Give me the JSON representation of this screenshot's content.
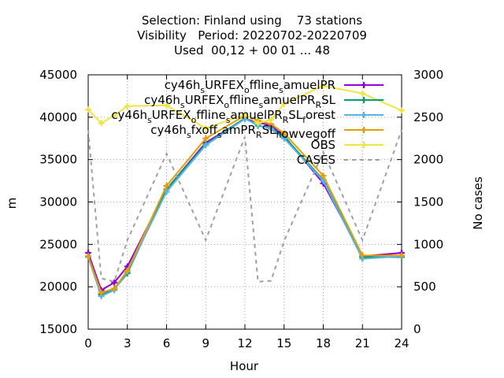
{
  "title_lines": [
    "Selection: Finland using    73 stations",
    "Visibility   Period: 20220702-20220709",
    "Used  00,12 + 00 01 ... 48"
  ],
  "chart_data": {
    "type": "line",
    "xlabel": "Hour",
    "ylabel": "m",
    "y2label": "No cases",
    "xlim": [
      0,
      24
    ],
    "ylim": [
      15000,
      45000
    ],
    "y2lim": [
      0,
      3000
    ],
    "xticks": [
      "0",
      "3",
      "6",
      "9",
      "12",
      "15",
      "18",
      "21",
      "24"
    ],
    "yticks": [
      "15000",
      "20000",
      "25000",
      "30000",
      "35000",
      "40000",
      "45000"
    ],
    "y2ticks": [
      "0",
      "500",
      "1000",
      "1500",
      "2000",
      "2500",
      "3000"
    ],
    "grid": true,
    "legend_position": "top-right",
    "series": [
      {
        "name": "cy46h_sURFEX_offline_samuelPR",
        "color": "#9400d3",
        "marker": "plus",
        "x": [
          0,
          1,
          2,
          3,
          6,
          9,
          12,
          13,
          14,
          15,
          18,
          21,
          24
        ],
        "y": [
          24000,
          19600,
          20500,
          22400,
          31500,
          37000,
          39800,
          39400,
          39000,
          37800,
          32200,
          23600,
          24000
        ]
      },
      {
        "name": "cy46h_sURFEX_offline_samuelPR_RSL",
        "color": "#009e73",
        "marker": "plus",
        "x": [
          0,
          1,
          2,
          3,
          6,
          9,
          12,
          13,
          14,
          15,
          18,
          21,
          24
        ],
        "y": [
          23600,
          19100,
          19700,
          21600,
          31500,
          36800,
          39900,
          39000,
          38700,
          37700,
          32600,
          23500,
          23500
        ]
      },
      {
        "name": "cy46h_sURFEX_offline_samuelPR_RSL_forest",
        "color": "#56b4e9",
        "marker": "plus",
        "x": [
          0,
          1,
          2,
          3,
          6,
          9,
          12,
          13,
          14,
          15,
          18,
          21,
          24
        ],
        "y": [
          23500,
          18900,
          19600,
          21800,
          31200,
          36700,
          39800,
          39100,
          38600,
          37500,
          32500,
          23300,
          23600
        ]
      },
      {
        "name": "cy46h_sfxoff_samPR_RSL_f_lowvegoff",
        "color": "#e69f00",
        "marker": "plus",
        "x": [
          0,
          1,
          2,
          3,
          6,
          9,
          12,
          13,
          14,
          15,
          18,
          21,
          24
        ],
        "y": [
          23600,
          19300,
          19800,
          21900,
          31900,
          37500,
          40200,
          39600,
          39200,
          38100,
          33100,
          23700,
          23700
        ]
      },
      {
        "name": "OBS",
        "color": "#f0e442",
        "marker": "plus",
        "x": [
          0,
          1,
          2,
          3,
          6,
          9,
          12,
          13,
          14,
          15,
          18,
          21,
          24
        ],
        "y": [
          40900,
          39300,
          40200,
          41300,
          41400,
          38700,
          40300,
          39300,
          39700,
          41600,
          43700,
          42800,
          40800
        ]
      },
      {
        "name": "CASES",
        "color": "#a0a0a0",
        "dashed": true,
        "axis": "y2",
        "x": [
          0,
          1,
          2,
          3,
          6,
          9,
          12,
          13,
          14,
          15,
          18,
          21,
          24
        ],
        "y": [
          2350,
          600,
          560,
          1050,
          2070,
          1050,
          2270,
          560,
          570,
          1040,
          2090,
          1050,
          2350
        ]
      }
    ]
  }
}
